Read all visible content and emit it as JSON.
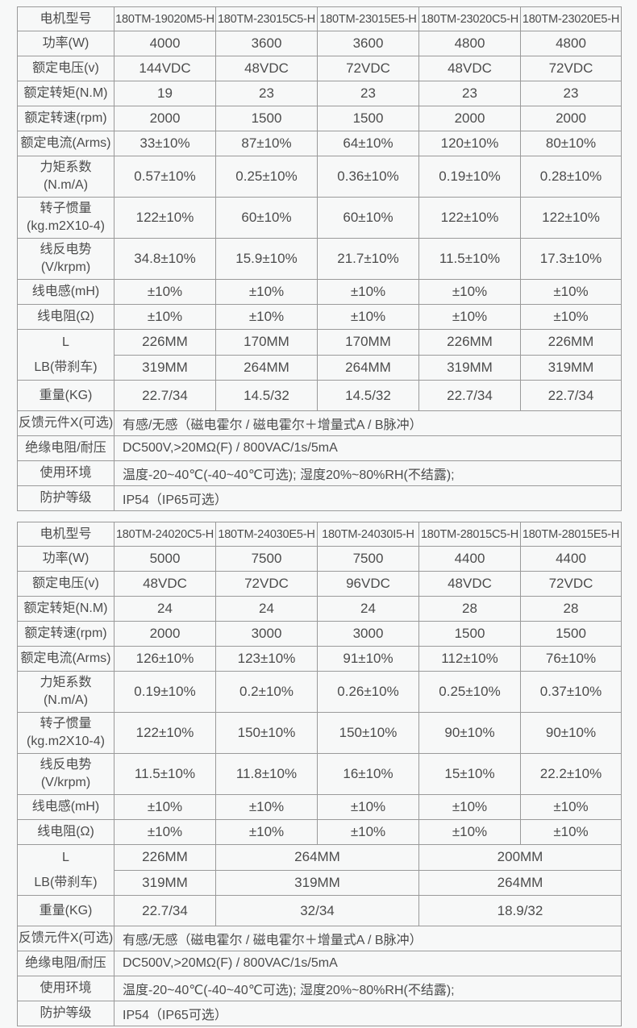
{
  "page": {
    "background_color": "#f7f8f8",
    "border_color": "#9a9a9a",
    "text_color": "#4c4c4c"
  },
  "tables": [
    {
      "name": "motor-spec-table-1",
      "header": {
        "label": "电机型号",
        "models": [
          "180TM-19020M5-H",
          "180TM-23015C5-H",
          "180TM-23015E5-H",
          "180TM-23020C5-H",
          "180TM-23020E5-H"
        ]
      },
      "rows": [
        {
          "kind": "spec",
          "label": "功率(W)",
          "cells": [
            {
              "t": "4000"
            },
            {
              "t": "3600"
            },
            {
              "t": "3600"
            },
            {
              "t": "4800"
            },
            {
              "t": "4800"
            }
          ]
        },
        {
          "kind": "spec",
          "label": "额定电压(v)",
          "cells": [
            {
              "t": "144VDC"
            },
            {
              "t": "48VDC"
            },
            {
              "t": "72VDC"
            },
            {
              "t": "48VDC"
            },
            {
              "t": "72VDC"
            }
          ]
        },
        {
          "kind": "spec",
          "label": "额定转矩(N.M)",
          "cells": [
            {
              "t": "19"
            },
            {
              "t": "23"
            },
            {
              "t": "23"
            },
            {
              "t": "23"
            },
            {
              "t": "23"
            }
          ]
        },
        {
          "kind": "spec",
          "label": "额定转速(rpm)",
          "cells": [
            {
              "t": "2000"
            },
            {
              "t": "1500"
            },
            {
              "t": "1500"
            },
            {
              "t": "2000"
            },
            {
              "t": "2000"
            }
          ]
        },
        {
          "kind": "spec",
          "label": "额定电流(Arms)",
          "cells": [
            {
              "t": "33±10%"
            },
            {
              "t": "87±10%"
            },
            {
              "t": "64±10%"
            },
            {
              "t": "120±10%"
            },
            {
              "t": "80±10%"
            }
          ]
        },
        {
          "kind": "spec",
          "h": "tall",
          "label": "力矩系数\n(N.m/A)",
          "cells": [
            {
              "t": "0.57±10%"
            },
            {
              "t": "0.25±10%"
            },
            {
              "t": "0.36±10%"
            },
            {
              "t": "0.19±10%"
            },
            {
              "t": "0.28±10%"
            }
          ]
        },
        {
          "kind": "spec",
          "h": "tall",
          "label": "转子惯量\n(kg.m2X10-4)",
          "cells": [
            {
              "t": "122±10%"
            },
            {
              "t": "60±10%"
            },
            {
              "t": "60±10%"
            },
            {
              "t": "122±10%"
            },
            {
              "t": "122±10%"
            }
          ]
        },
        {
          "kind": "spec",
          "h": "tall",
          "label": "线反电势\n(V/krpm)",
          "cells": [
            {
              "t": "34.8±10%"
            },
            {
              "t": "15.9±10%"
            },
            {
              "t": "21.7±10%"
            },
            {
              "t": "11.5±10%"
            },
            {
              "t": "17.3±10%"
            }
          ]
        },
        {
          "kind": "spec",
          "label": "线电感(mH)",
          "cells": [
            {
              "t": "±10%"
            },
            {
              "t": "±10%"
            },
            {
              "t": "±10%"
            },
            {
              "t": "±10%"
            },
            {
              "t": "±10%"
            }
          ]
        },
        {
          "kind": "spec",
          "label": "线电阻(Ω)",
          "cells": [
            {
              "t": "±10%"
            },
            {
              "t": "±10%"
            },
            {
              "t": "±10%"
            },
            {
              "t": "±10%"
            },
            {
              "t": "±10%"
            }
          ]
        },
        {
          "kind": "dims",
          "labels": [
            "L",
            "LB(带刹车)"
          ],
          "row1": [
            {
              "t": "226MM"
            },
            {
              "t": "170MM"
            },
            {
              "t": "170MM"
            },
            {
              "t": "226MM"
            },
            {
              "t": "226MM"
            }
          ],
          "row2": [
            {
              "t": "319MM"
            },
            {
              "t": "264MM"
            },
            {
              "t": "264MM"
            },
            {
              "t": "319MM"
            },
            {
              "t": "319MM"
            }
          ]
        },
        {
          "kind": "spec",
          "h": "weight",
          "label": "重量(KG)",
          "cells": [
            {
              "t": "22.7/34"
            },
            {
              "t": "14.5/32"
            },
            {
              "t": "14.5/32"
            },
            {
              "t": "22.7/34"
            },
            {
              "t": "22.7/34"
            }
          ]
        },
        {
          "kind": "wide",
          "label": "反馈元件X(可选)",
          "text": "有感/无感（磁电霍尔 / 磁电霍尔＋增量式A / B脉冲）"
        },
        {
          "kind": "wide",
          "label": "绝缘电阻/耐压",
          "text": "DC500V,>20MΩ(F) / 800VAC/1s/5mA"
        },
        {
          "kind": "wide",
          "label": "使用环境",
          "text": "温度-20~40℃(-40~40℃可选); 湿度20%~80%RH(不结露);"
        },
        {
          "kind": "wide",
          "label": "防护等级",
          "text": "IP54（IP65可选）"
        }
      ]
    },
    {
      "name": "motor-spec-table-2",
      "header": {
        "label": "电机型号",
        "models": [
          "180TM-24020C5-H",
          "180TM-24030E5-H",
          "180TM-24030I5-H",
          "180TM-28015C5-H",
          "180TM-28015E5-H"
        ]
      },
      "rows": [
        {
          "kind": "spec",
          "label": "功率(W)",
          "cells": [
            {
              "t": "5000"
            },
            {
              "t": "7500"
            },
            {
              "t": "7500"
            },
            {
              "t": "4400"
            },
            {
              "t": "4400"
            }
          ]
        },
        {
          "kind": "spec",
          "label": "额定电压(v)",
          "cells": [
            {
              "t": "48VDC"
            },
            {
              "t": "72VDC"
            },
            {
              "t": "96VDC"
            },
            {
              "t": "48VDC"
            },
            {
              "t": "72VDC"
            }
          ]
        },
        {
          "kind": "spec",
          "label": "额定转矩(N.M)",
          "cells": [
            {
              "t": "24"
            },
            {
              "t": "24"
            },
            {
              "t": "24"
            },
            {
              "t": "28"
            },
            {
              "t": "28"
            }
          ]
        },
        {
          "kind": "spec",
          "label": "额定转速(rpm)",
          "cells": [
            {
              "t": "2000"
            },
            {
              "t": "3000"
            },
            {
              "t": "3000"
            },
            {
              "t": "1500"
            },
            {
              "t": "1500"
            }
          ]
        },
        {
          "kind": "spec",
          "label": "额定电流(Arms)",
          "cells": [
            {
              "t": "126±10%"
            },
            {
              "t": "123±10%"
            },
            {
              "t": "91±10%"
            },
            {
              "t": "112±10%"
            },
            {
              "t": "76±10%"
            }
          ]
        },
        {
          "kind": "spec",
          "h": "tall",
          "label": "力矩系数\n(N.m/A)",
          "cells": [
            {
              "t": "0.19±10%"
            },
            {
              "t": "0.2±10%"
            },
            {
              "t": "0.26±10%"
            },
            {
              "t": "0.25±10%"
            },
            {
              "t": "0.37±10%"
            }
          ]
        },
        {
          "kind": "spec",
          "h": "tall",
          "label": "转子惯量\n(kg.m2X10-4)",
          "cells": [
            {
              "t": "122±10%"
            },
            {
              "t": "150±10%"
            },
            {
              "t": "150±10%"
            },
            {
              "t": "90±10%"
            },
            {
              "t": "90±10%"
            }
          ]
        },
        {
          "kind": "spec",
          "h": "tall",
          "label": "线反电势\n(V/krpm)",
          "cells": [
            {
              "t": "11.5±10%"
            },
            {
              "t": "11.8±10%"
            },
            {
              "t": "16±10%"
            },
            {
              "t": "15±10%"
            },
            {
              "t": "22.2±10%"
            }
          ]
        },
        {
          "kind": "spec",
          "label": "线电感(mH)",
          "cells": [
            {
              "t": "±10%"
            },
            {
              "t": "±10%"
            },
            {
              "t": "±10%"
            },
            {
              "t": "±10%"
            },
            {
              "t": "±10%"
            }
          ]
        },
        {
          "kind": "spec",
          "label": "线电阻(Ω)",
          "cells": [
            {
              "t": "±10%"
            },
            {
              "t": "±10%"
            },
            {
              "t": "±10%"
            },
            {
              "t": "±10%"
            },
            {
              "t": "±10%"
            }
          ]
        },
        {
          "kind": "dims",
          "labels": [
            "L",
            "LB(带刹车)"
          ],
          "row1": [
            {
              "t": "226MM"
            },
            {
              "t": "264MM",
              "span": 2
            },
            {
              "t": "200MM",
              "span": 2
            }
          ],
          "row2": [
            {
              "t": "319MM"
            },
            {
              "t": "319MM",
              "span": 2
            },
            {
              "t": "264MM",
              "span": 2
            }
          ]
        },
        {
          "kind": "spec",
          "h": "weight",
          "label": "重量(KG)",
          "cells": [
            {
              "t": "22.7/34"
            },
            {
              "t": "32/34",
              "span": 2
            },
            {
              "t": "18.9/32",
              "span": 2
            }
          ]
        },
        {
          "kind": "wide",
          "label": "反馈元件X(可选)",
          "text": "有感/无感（磁电霍尔 / 磁电霍尔＋增量式A / B脉冲）"
        },
        {
          "kind": "wide",
          "label": "绝缘电阻/耐压",
          "text": "DC500V,>20MΩ(F) / 800VAC/1s/5mA"
        },
        {
          "kind": "wide",
          "label": "使用环境",
          "text": "温度-20~40℃(-40~40℃可选); 湿度20%~80%RH(不结露);"
        },
        {
          "kind": "wide",
          "label": "防护等级",
          "text": "IP54（IP65可选）"
        }
      ]
    }
  ]
}
